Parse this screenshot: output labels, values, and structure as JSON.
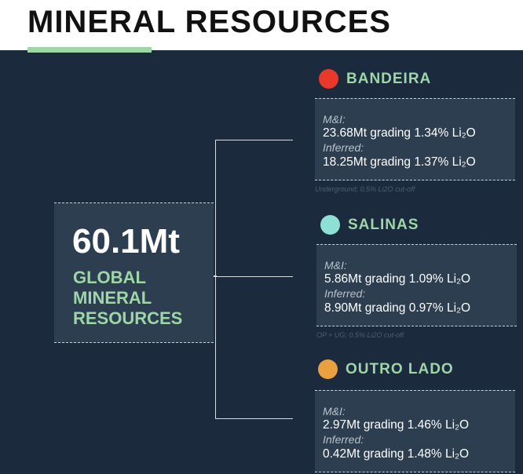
{
  "header": {
    "title": "MINERAL RESOURCES"
  },
  "total": {
    "value": "60.1Mt",
    "label": "GLOBAL MINERAL RESOURCES"
  },
  "projects": [
    {
      "name": "BANDEIRA",
      "color": "#e8392b",
      "mi_label": "M&I:",
      "mi": "23.68Mt grading 1.34% Li₂O",
      "inferred_label": "Inferred:",
      "inferred": "18.25Mt grading 1.37% Li₂O",
      "note": "Underground; 0.5% Li2O cut-off"
    },
    {
      "name": "SALINAS",
      "color": "#8ee0d4",
      "mi_label": "M&I:",
      "mi": "5.86Mt grading 1.09% Li₂O",
      "inferred_label": "Inferred:",
      "inferred": "8.90Mt grading 0.97% Li₂O",
      "note": "OP + UG; 0.5% Li2O cut-off"
    },
    {
      "name": "OUTRO LADO",
      "color": "#e8a040",
      "mi_label": "M&I:",
      "mi": "2.97Mt grading 1.46% Li₂O",
      "inferred_label": "Inferred:",
      "inferred": "0.42Mt grading 1.48% Li₂O"
    }
  ]
}
